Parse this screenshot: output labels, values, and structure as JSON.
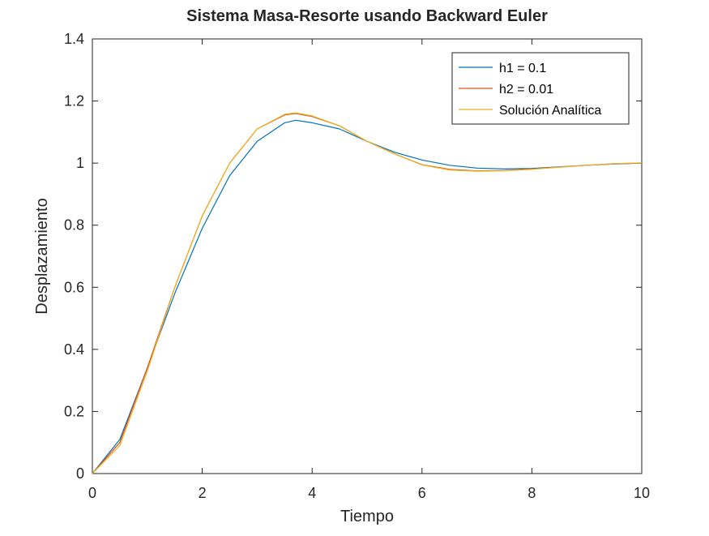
{
  "chart_data": {
    "type": "line",
    "title": "Sistema Masa-Resorte usando Backward Euler",
    "xlabel": "Tiempo",
    "ylabel": "Desplazamiento",
    "xlim": [
      0,
      10
    ],
    "ylim": [
      0,
      1.4
    ],
    "xticks": [
      "0",
      "2",
      "4",
      "6",
      "8",
      "10"
    ],
    "yticks": [
      "0",
      "0.2",
      "0.4",
      "0.6",
      "0.8",
      "1",
      "1.2",
      "1.4"
    ],
    "grid": false,
    "legend_position": "top-right",
    "series": [
      {
        "name": "h1 = 0.1",
        "color": "#0072BD",
        "x": [
          0,
          0.5,
          1,
          1.5,
          2,
          2.5,
          3,
          3.5,
          3.7,
          4,
          4.5,
          5,
          5.5,
          6,
          6.5,
          7,
          7.5,
          8,
          8.5,
          9,
          9.5,
          10
        ],
        "y": [
          0,
          0.11,
          0.34,
          0.58,
          0.79,
          0.96,
          1.07,
          1.13,
          1.138,
          1.13,
          1.11,
          1.07,
          1.035,
          1.01,
          0.993,
          0.984,
          0.981,
          0.983,
          0.988,
          0.993,
          0.997,
          1.0
        ]
      },
      {
        "name": "h2 = 0.01",
        "color": "#D95319",
        "x": [
          0,
          0.5,
          1,
          1.5,
          2,
          2.5,
          3,
          3.5,
          3.7,
          4,
          4.5,
          5,
          5.5,
          6,
          6.5,
          7,
          7.5,
          8,
          8.5,
          9,
          9.5,
          10
        ],
        "y": [
          0,
          0.1,
          0.34,
          0.6,
          0.83,
          1.0,
          1.11,
          1.155,
          1.16,
          1.15,
          1.12,
          1.07,
          1.03,
          0.995,
          0.98,
          0.975,
          0.976,
          0.981,
          0.987,
          0.993,
          0.998,
          1.0
        ]
      },
      {
        "name": "Solución Analítica",
        "color": "#EDB120",
        "x": [
          0,
          0.5,
          1,
          1.5,
          2,
          2.5,
          3,
          3.5,
          3.7,
          4,
          4.5,
          5,
          5.5,
          6,
          6.5,
          7,
          7.5,
          8,
          8.5,
          9,
          9.5,
          10
        ],
        "y": [
          0,
          0.09,
          0.33,
          0.6,
          0.83,
          1.0,
          1.11,
          1.157,
          1.162,
          1.152,
          1.12,
          1.07,
          1.03,
          0.994,
          0.978,
          0.974,
          0.975,
          0.98,
          0.987,
          0.993,
          0.998,
          1.001
        ]
      }
    ]
  }
}
